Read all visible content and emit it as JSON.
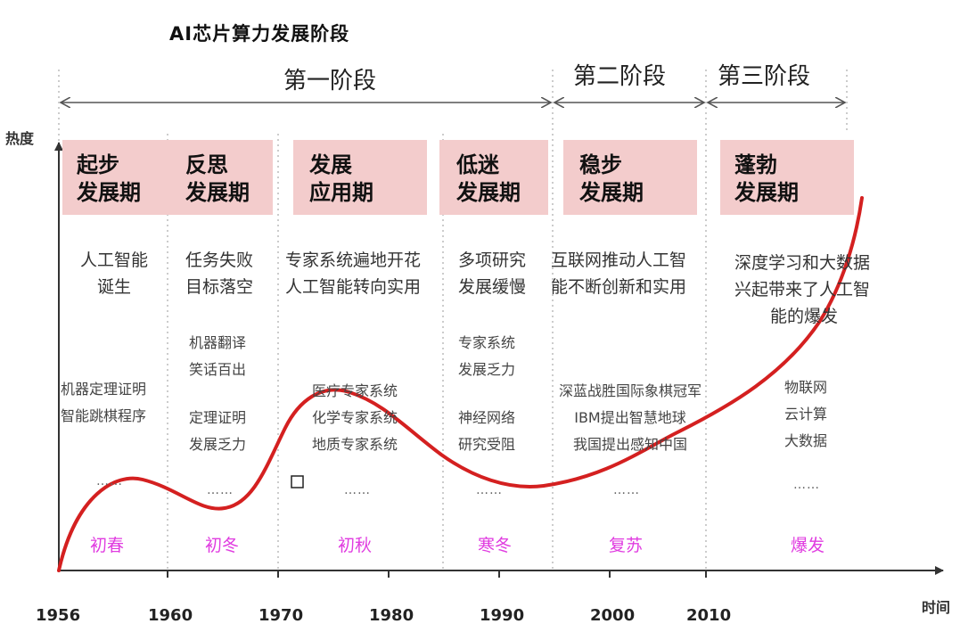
{
  "title": "AI芯片算力发展阶段",
  "axes": {
    "y_label": "热度",
    "x_label": "时间"
  },
  "stages": [
    "第一阶段",
    "第二阶段",
    "第三阶段"
  ],
  "phases": [
    {
      "line1": "起步",
      "line2": "发展期"
    },
    {
      "line1": "反思",
      "line2": "发展期"
    },
    {
      "line1": "发展",
      "line2": "应用期"
    },
    {
      "line1": "低迷",
      "line2": "发展期"
    },
    {
      "line1": "稳步",
      "line2": "发展期"
    },
    {
      "line1": "蓬勃",
      "line2": "发展期"
    }
  ],
  "descriptions": [
    [
      "人工智能",
      "诞生"
    ],
    [
      "任务失败",
      "目标落空"
    ],
    [
      "专家系统遍地开花",
      "人工智能转向实用"
    ],
    [
      "多项研究",
      "发展缓慢"
    ],
    [
      "互联网推动人工智",
      "能不断创新和实用"
    ],
    [
      "深度学习和大数据",
      "兴起带来了人工智",
      "能的爆发"
    ]
  ],
  "events": [
    [
      "机器定理证明",
      "智能跳棋程序"
    ],
    [
      "机器翻译",
      "笑话百出",
      "",
      "定理证明",
      "发展乏力"
    ],
    [
      "医疗专家系统",
      "化学专家系统",
      "地质专家系统"
    ],
    [
      "专家系统",
      "发展乏力",
      "",
      "神经网络",
      "研究受阻"
    ],
    [
      "深蓝战胜国际象棋冠军",
      "IBM提出智慧地球",
      "我国提出感知中国"
    ],
    [
      "物联网",
      "云计算",
      "大数据"
    ]
  ],
  "ellipsis": "……",
  "seasons": [
    "初春",
    "初冬",
    "初秋",
    "寒冬",
    "复苏",
    "爆发"
  ],
  "years": [
    "1956",
    "1960",
    "1970",
    "1980",
    "1990",
    "2000",
    "2010"
  ],
  "colors": {
    "curve": "#d42020",
    "phase_fill": "#f3cccc",
    "season_text": "#e03ce0"
  }
}
